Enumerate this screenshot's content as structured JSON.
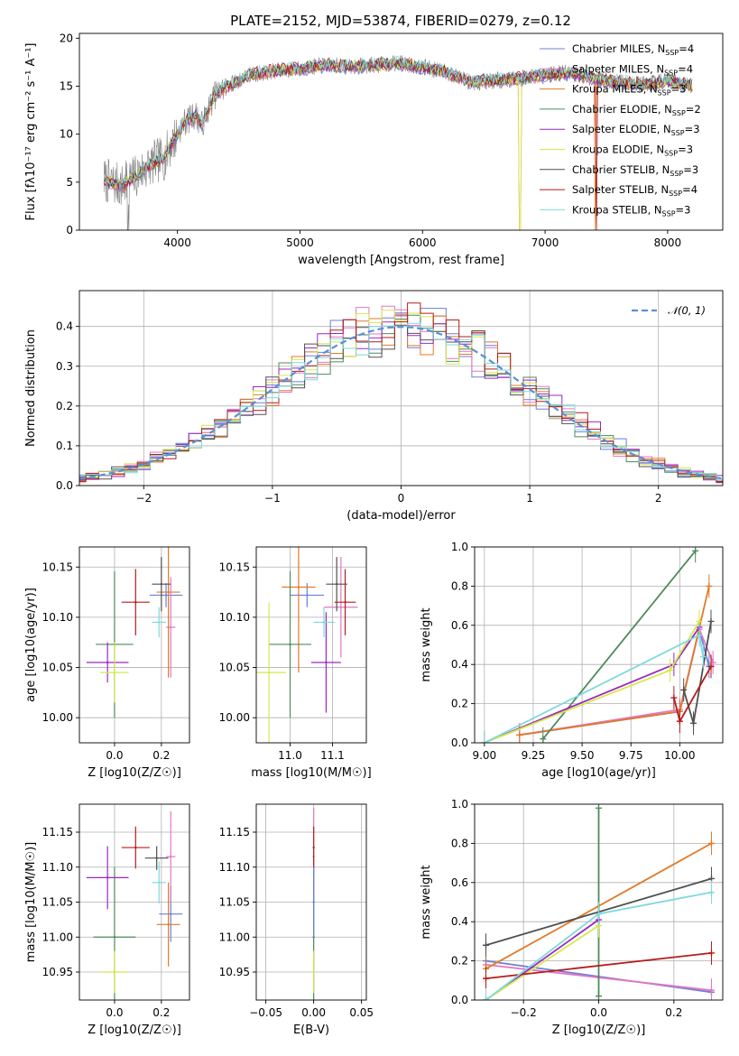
{
  "page_title": "PLATE=2152, MJD=53874, FIBERID=0279, z=0.12",
  "colors": {
    "Chabrier MILES": "#6b7fd7",
    "Salpeter MILES": "#e377c2",
    "Kroupa MILES": "#e07a2a",
    "Chabrier ELODIE": "#4f8a5b",
    "Salpeter ELODIE": "#9b27c0",
    "Kroupa ELODIE": "#d6e84a",
    "Chabrier STELIB": "#505050",
    "Salpeter STELIB": "#b51c1c",
    "Kroupa STELIB": "#7fd9dd",
    "normal": "#5b8fd6",
    "data": "#808080"
  },
  "chart_data": [
    {
      "id": "spectrum",
      "type": "line",
      "title": "PLATE=2152, MJD=53874, FIBERID=0279, z=0.12",
      "xlabel": "wavelength [Angstrom, rest frame]",
      "ylabel": "Flux [fλ10⁻¹⁷ erg cm⁻² s⁻¹ A⁻¹]",
      "xlim": [
        3200,
        8450
      ],
      "ylim": [
        0,
        20.5
      ],
      "xticks": [
        4000,
        5000,
        6000,
        7000,
        8000
      ],
      "yticks": [
        0,
        5,
        10,
        15,
        20
      ],
      "grid": false,
      "legend_position": "top-right",
      "continuum_x": [
        3400,
        3550,
        3700,
        3800,
        3900,
        3950,
        4000,
        4050,
        4100,
        4150,
        4200,
        4300,
        4400,
        4600,
        4800,
        5000,
        5200,
        5400,
        5600,
        5800,
        6000,
        6200,
        6400,
        6600,
        6800,
        7000,
        7200,
        7400,
        7600,
        7800,
        8000,
        8200
      ],
      "continuum_y": [
        5.2,
        4.6,
        6.0,
        7.0,
        7.6,
        9.0,
        10.0,
        11.2,
        11.6,
        12.0,
        11.0,
        14.0,
        15.0,
        16.2,
        16.6,
        16.8,
        17.2,
        17.0,
        17.2,
        17.4,
        17.0,
        16.4,
        15.4,
        15.6,
        15.8,
        16.2,
        16.4,
        15.8,
        15.4,
        15.2,
        15.6,
        15.0
      ],
      "dips": [
        {
          "x": 6795,
          "series": "Kroupa ELODIE"
        },
        {
          "x": 6795,
          "series": "Kroupa MILES"
        },
        {
          "x": 7410,
          "series": "Kroupa MILES"
        },
        {
          "x": 7420,
          "series": "Salpeter STELIB"
        }
      ],
      "series": [
        {
          "name": "Chabrier MILES",
          "nssp": "4"
        },
        {
          "name": "Salpeter MILES",
          "nssp": "4"
        },
        {
          "name": "Kroupa MILES",
          "nssp": "3"
        },
        {
          "name": "Chabrier ELODIE",
          "nssp": "2"
        },
        {
          "name": "Salpeter ELODIE",
          "nssp": "3"
        },
        {
          "name": "Kroupa ELODIE",
          "nssp": "3"
        },
        {
          "name": "Chabrier STELIB",
          "nssp": "3"
        },
        {
          "name": "Salpeter STELIB",
          "nssp": "4"
        },
        {
          "name": "Kroupa STELIB",
          "nssp": "3"
        }
      ]
    },
    {
      "id": "residuals",
      "type": "line",
      "xlabel": "(data-model)/error",
      "ylabel": "Normed distribution",
      "xlim": [
        -2.5,
        2.5
      ],
      "ylim": [
        0,
        0.49
      ],
      "xticks": [
        -2,
        -1,
        0,
        1,
        2
      ],
      "yticks": [
        0.0,
        0.1,
        0.2,
        0.3,
        0.4
      ],
      "grid": true,
      "bin_width": 0.1,
      "legend_position": "top-right",
      "legend_label": "N(0,1)",
      "curve": "normal(0,1) pdf, dashed"
    },
    {
      "id": "age-vs-Z",
      "type": "scatter",
      "xlabel": "Z [log10(Z/Z☉)]",
      "ylabel": "age  [log10(age/yr)]",
      "xlim": [
        -0.15,
        0.32
      ],
      "ylim": [
        9.975,
        10.17
      ],
      "xticks": [
        0.0,
        0.2
      ],
      "yticks": [
        10.0,
        10.05,
        10.1,
        10.15
      ],
      "grid": true,
      "points": [
        {
          "series": "Chabrier MILES",
          "x": 0.22,
          "xerr": 0.07,
          "y": 10.122,
          "yerr": 0.012
        },
        {
          "series": "Salpeter MILES",
          "x": 0.24,
          "xerr": 0.02,
          "y": 10.09,
          "yerr": 0.05
        },
        {
          "series": "Kroupa MILES",
          "x": 0.23,
          "xerr": 0.05,
          "y": 10.125,
          "yerr": 0.085
        },
        {
          "series": "Chabrier ELODIE",
          "x": 0.0,
          "xerr": 0.08,
          "y": 10.073,
          "yerr": 0.073
        },
        {
          "series": "Salpeter ELODIE",
          "x": -0.03,
          "xerr": 0.09,
          "y": 10.055,
          "yerr": 0.02
        },
        {
          "series": "Kroupa ELODIE",
          "x": 0.0,
          "xerr": 0.06,
          "y": 10.045,
          "yerr": 0.03
        },
        {
          "series": "Chabrier STELIB",
          "x": 0.2,
          "xerr": 0.04,
          "y": 10.133,
          "yerr": 0.027
        },
        {
          "series": "Salpeter STELIB",
          "x": 0.09,
          "xerr": 0.06,
          "y": 10.115,
          "yerr": 0.033
        },
        {
          "series": "Kroupa STELIB",
          "x": 0.19,
          "xerr": 0.03,
          "y": 10.095,
          "yerr": 0.015
        }
      ]
    },
    {
      "id": "age-vs-mass",
      "type": "scatter",
      "xlabel": "mass [log10(M/M☉)]",
      "ylabel": "",
      "xlim": [
        10.92,
        11.18
      ],
      "ylim": [
        9.975,
        10.17
      ],
      "xticks": [
        11.0,
        11.1
      ],
      "yticks": [
        10.0,
        10.05,
        10.1,
        10.15
      ],
      "grid": true,
      "points": [
        {
          "series": "Chabrier MILES",
          "x": 11.04,
          "xerr": 0.04,
          "y": 10.122,
          "yerr": 0.012
        },
        {
          "series": "Salpeter MILES",
          "x": 11.12,
          "xerr": 0.04,
          "y": 10.11,
          "yerr": 0.05
        },
        {
          "series": "Kroupa MILES",
          "x": 11.02,
          "xerr": 0.04,
          "y": 10.13,
          "yerr": 0.085
        },
        {
          "series": "Chabrier ELODIE",
          "x": 11.0,
          "xerr": 0.05,
          "y": 10.073,
          "yerr": 0.073
        },
        {
          "series": "Salpeter ELODIE",
          "x": 11.085,
          "xerr": 0.035,
          "y": 10.055,
          "yerr": 0.05
        },
        {
          "series": "Kroupa ELODIE",
          "x": 10.95,
          "xerr": 0.04,
          "y": 10.045,
          "yerr": 0.07
        },
        {
          "series": "Chabrier STELIB",
          "x": 11.11,
          "xerr": 0.025,
          "y": 10.133,
          "yerr": 0.027
        },
        {
          "series": "Salpeter STELIB",
          "x": 11.13,
          "xerr": 0.025,
          "y": 10.115,
          "yerr": 0.033
        },
        {
          "series": "Kroupa STELIB",
          "x": 11.08,
          "xerr": 0.025,
          "y": 10.095,
          "yerr": 0.015
        }
      ]
    },
    {
      "id": "weight-vs-age",
      "type": "line",
      "xlabel": "age  [log10(age/yr)]",
      "ylabel": "mass weight",
      "xlim": [
        8.95,
        10.22
      ],
      "ylim": [
        0,
        1.0
      ],
      "xticks": [
        9.0,
        9.25,
        9.5,
        9.75,
        10.0
      ],
      "yticks": [
        0.0,
        0.2,
        0.4,
        0.6,
        0.8,
        1.0
      ],
      "grid": true,
      "series": [
        {
          "name": "Chabrier MILES",
          "x": [
            9.18,
            10.0,
            10.1,
            10.15
          ],
          "y": [
            0.04,
            0.16,
            0.58,
            0.39
          ]
        },
        {
          "name": "Salpeter MILES",
          "x": [
            9.18,
            10.0,
            10.1,
            10.17
          ],
          "y": [
            0.04,
            0.17,
            0.58,
            0.41
          ]
        },
        {
          "name": "Kroupa MILES",
          "x": [
            9.18,
            10.0,
            10.15
          ],
          "y": [
            0.04,
            0.16,
            0.8
          ]
        },
        {
          "name": "Chabrier ELODIE",
          "x": [
            9.3,
            10.08
          ],
          "y": [
            0.02,
            0.98
          ]
        },
        {
          "name": "Salpeter ELODIE",
          "x": [
            9.0,
            9.97,
            10.1
          ],
          "y": [
            0.0,
            0.4,
            0.59
          ]
        },
        {
          "name": "Kroupa ELODIE",
          "x": [
            9.0,
            9.95,
            10.1
          ],
          "y": [
            0.0,
            0.37,
            0.62
          ]
        },
        {
          "name": "Chabrier STELIB",
          "x": [
            10.02,
            10.07,
            10.16
          ],
          "y": [
            0.27,
            0.1,
            0.62
          ]
        },
        {
          "name": "Salpeter STELIB",
          "x": [
            9.97,
            10.0,
            10.16
          ],
          "y": [
            0.23,
            0.11,
            0.39
          ]
        },
        {
          "name": "Kroupa STELIB",
          "x": [
            9.0,
            10.1,
            10.12
          ],
          "y": [
            0.0,
            0.55,
            0.44
          ]
        }
      ]
    },
    {
      "id": "mass-vs-Z",
      "type": "scatter",
      "xlabel": "Z [log10(Z/Z☉)]",
      "ylabel": "mass [log10(M/M☉)]",
      "xlim": [
        -0.15,
        0.32
      ],
      "ylim": [
        10.91,
        11.19
      ],
      "xticks": [
        0.0,
        0.2
      ],
      "yticks": [
        10.95,
        11.0,
        11.05,
        11.1,
        11.15
      ],
      "grid": true,
      "points": [
        {
          "series": "Chabrier MILES",
          "x": 0.24,
          "xerr": 0.05,
          "y": 11.033,
          "yerr": 0.04
        },
        {
          "series": "Salpeter MILES",
          "x": 0.24,
          "xerr": 0.02,
          "y": 11.115,
          "yerr": 0.065
        },
        {
          "series": "Kroupa MILES",
          "x": 0.23,
          "xerr": 0.05,
          "y": 11.018,
          "yerr": 0.06
        },
        {
          "series": "Chabrier ELODIE",
          "x": 0.0,
          "xerr": 0.09,
          "y": 11.0,
          "yerr": 0.1
        },
        {
          "series": "Salpeter ELODIE",
          "x": -0.03,
          "xerr": 0.09,
          "y": 11.085,
          "yerr": 0.045
        },
        {
          "series": "Kroupa ELODIE",
          "x": 0.0,
          "xerr": 0.06,
          "y": 10.95,
          "yerr": 0.03
        },
        {
          "series": "Chabrier STELIB",
          "x": 0.18,
          "xerr": 0.05,
          "y": 11.113,
          "yerr": 0.017
        },
        {
          "series": "Salpeter STELIB",
          "x": 0.09,
          "xerr": 0.06,
          "y": 11.128,
          "yerr": 0.03
        },
        {
          "series": "Kroupa STELIB",
          "x": 0.19,
          "xerr": 0.03,
          "y": 11.078,
          "yerr": 0.03
        }
      ]
    },
    {
      "id": "mass-vs-ebv",
      "type": "scatter",
      "xlabel": "E(B-V)",
      "ylabel": "",
      "xlim": [
        -0.06,
        0.055
      ],
      "ylim": [
        10.91,
        11.19
      ],
      "xticks": [
        -0.05,
        0.0,
        0.05
      ],
      "yticks": [
        10.95,
        11.0,
        11.05,
        11.1,
        11.15
      ],
      "grid": true,
      "points": [
        {
          "series": "Salpeter MILES",
          "x": 0.0,
          "xerr": 0.0,
          "y": 11.115,
          "yerr": 0.07
        },
        {
          "series": "Chabrier ELODIE",
          "x": 0.0,
          "xerr": 0.0,
          "y": 11.0,
          "yerr": 0.1
        },
        {
          "series": "Kroupa ELODIE",
          "x": 0.0,
          "xerr": 0.0,
          "y": 10.95,
          "yerr": 0.03
        },
        {
          "series": "Salpeter STELIB",
          "x": 0.0,
          "xerr": 0.0,
          "y": 11.128,
          "yerr": 0.03
        },
        {
          "series": "Chabrier MILES",
          "x": 0.0,
          "xerr": 0.0,
          "y": 11.05,
          "yerr": 0.05
        }
      ]
    },
    {
      "id": "weight-vs-Z",
      "type": "line",
      "xlabel": "Z [log10(Z/Z☉)]",
      "ylabel": "mass weight",
      "xlim": [
        -0.33,
        0.33
      ],
      "ylim": [
        0,
        1.0
      ],
      "xticks": [
        -0.2,
        0.0,
        0.2
      ],
      "yticks": [
        0.0,
        0.2,
        0.4,
        0.6,
        0.8,
        1.0
      ],
      "grid": true,
      "series": [
        {
          "name": "Chabrier MILES",
          "x": [
            -0.3,
            0.3
          ],
          "y": [
            0.2,
            0.04
          ]
        },
        {
          "name": "Salpeter MILES",
          "x": [
            -0.3,
            0.3
          ],
          "y": [
            0.18,
            0.05
          ]
        },
        {
          "name": "Kroupa MILES",
          "x": [
            -0.3,
            0.3
          ],
          "y": [
            0.16,
            0.8
          ]
        },
        {
          "name": "Chabrier ELODIE",
          "x": [
            0.0,
            0.0
          ],
          "y": [
            0.02,
            0.98
          ]
        },
        {
          "name": "Salpeter ELODIE",
          "x": [
            -0.3,
            0.0
          ],
          "y": [
            0.0,
            0.41
          ]
        },
        {
          "name": "Kroupa ELODIE",
          "x": [
            -0.3,
            0.0
          ],
          "y": [
            0.0,
            0.38
          ]
        },
        {
          "name": "Chabrier STELIB",
          "x": [
            -0.3,
            0.3
          ],
          "y": [
            0.28,
            0.62
          ]
        },
        {
          "name": "Salpeter STELIB",
          "x": [
            -0.3,
            0.3
          ],
          "y": [
            0.11,
            0.24
          ]
        },
        {
          "name": "Kroupa STELIB",
          "x": [
            -0.3,
            0.0,
            0.3
          ],
          "y": [
            0.0,
            0.44,
            0.55
          ]
        }
      ]
    }
  ]
}
